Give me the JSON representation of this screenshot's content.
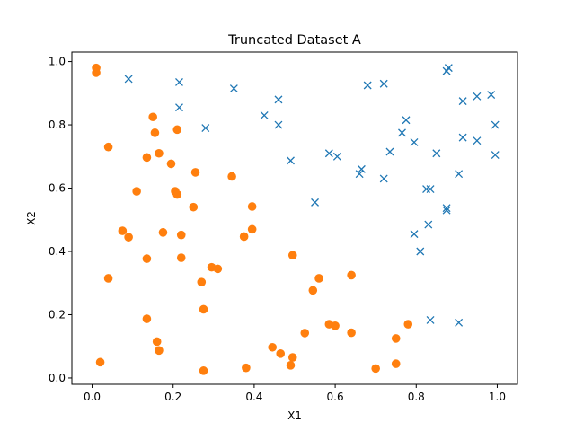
{
  "chart_data": {
    "type": "scatter",
    "title": "Truncated Dataset A",
    "xlabel": "X1",
    "ylabel": "X2",
    "xlim": [
      -0.05,
      1.05
    ],
    "ylim": [
      -0.02,
      1.03
    ],
    "xticks": [
      "0.0",
      "0.2",
      "0.4",
      "0.6",
      "0.8",
      "1.0"
    ],
    "yticks": [
      "0.0",
      "0.2",
      "0.4",
      "0.6",
      "0.8",
      "1.0"
    ],
    "grid": false,
    "legend": "none",
    "series": [
      {
        "marker": "x",
        "color": "#1f77b4",
        "points": [
          [
            0.09,
            0.945
          ],
          [
            0.215,
            0.935
          ],
          [
            0.35,
            0.915
          ],
          [
            0.46,
            0.88
          ],
          [
            0.215,
            0.855
          ],
          [
            0.425,
            0.83
          ],
          [
            0.46,
            0.8
          ],
          [
            0.28,
            0.79
          ],
          [
            0.49,
            0.687
          ],
          [
            0.585,
            0.71
          ],
          [
            0.605,
            0.7
          ],
          [
            0.66,
            0.645
          ],
          [
            0.665,
            0.66
          ],
          [
            0.55,
            0.555
          ],
          [
            0.68,
            0.925
          ],
          [
            0.72,
            0.93
          ],
          [
            0.775,
            0.815
          ],
          [
            0.765,
            0.775
          ],
          [
            0.795,
            0.745
          ],
          [
            0.735,
            0.715
          ],
          [
            0.72,
            0.63
          ],
          [
            0.875,
            0.97
          ],
          [
            0.88,
            0.98
          ],
          [
            0.915,
            0.875
          ],
          [
            0.95,
            0.89
          ],
          [
            0.985,
            0.895
          ],
          [
            0.995,
            0.8
          ],
          [
            0.915,
            0.76
          ],
          [
            0.95,
            0.75
          ],
          [
            0.995,
            0.705
          ],
          [
            0.85,
            0.71
          ],
          [
            0.905,
            0.645
          ],
          [
            0.825,
            0.597
          ],
          [
            0.835,
            0.597
          ],
          [
            0.875,
            0.53
          ],
          [
            0.875,
            0.537
          ],
          [
            0.83,
            0.485
          ],
          [
            0.795,
            0.455
          ],
          [
            0.81,
            0.4
          ],
          [
            0.835,
            0.183
          ],
          [
            0.905,
            0.175
          ]
        ]
      },
      {
        "marker": "o",
        "color": "#ff7f0e",
        "points": [
          [
            0.01,
            0.98
          ],
          [
            0.01,
            0.965
          ],
          [
            0.04,
            0.73
          ],
          [
            0.15,
            0.825
          ],
          [
            0.155,
            0.775
          ],
          [
            0.165,
            0.71
          ],
          [
            0.135,
            0.697
          ],
          [
            0.21,
            0.785
          ],
          [
            0.195,
            0.677
          ],
          [
            0.255,
            0.65
          ],
          [
            0.345,
            0.637
          ],
          [
            0.11,
            0.59
          ],
          [
            0.205,
            0.59
          ],
          [
            0.21,
            0.58
          ],
          [
            0.25,
            0.54
          ],
          [
            0.395,
            0.542
          ],
          [
            0.395,
            0.47
          ],
          [
            0.375,
            0.447
          ],
          [
            0.075,
            0.465
          ],
          [
            0.09,
            0.445
          ],
          [
            0.175,
            0.46
          ],
          [
            0.22,
            0.452
          ],
          [
            0.135,
            0.377
          ],
          [
            0.22,
            0.38
          ],
          [
            0.495,
            0.388
          ],
          [
            0.295,
            0.35
          ],
          [
            0.31,
            0.345
          ],
          [
            0.04,
            0.315
          ],
          [
            0.27,
            0.303
          ],
          [
            0.56,
            0.315
          ],
          [
            0.545,
            0.277
          ],
          [
            0.64,
            0.325
          ],
          [
            0.275,
            0.217
          ],
          [
            0.135,
            0.187
          ],
          [
            0.585,
            0.17
          ],
          [
            0.6,
            0.165
          ],
          [
            0.525,
            0.142
          ],
          [
            0.64,
            0.143
          ],
          [
            0.78,
            0.17
          ],
          [
            0.16,
            0.115
          ],
          [
            0.165,
            0.087
          ],
          [
            0.445,
            0.097
          ],
          [
            0.465,
            0.077
          ],
          [
            0.495,
            0.065
          ],
          [
            0.49,
            0.04
          ],
          [
            0.02,
            0.05
          ],
          [
            0.38,
            0.032
          ],
          [
            0.275,
            0.023
          ],
          [
            0.75,
            0.125
          ],
          [
            0.75,
            0.045
          ],
          [
            0.7,
            0.03
          ]
        ]
      }
    ]
  }
}
